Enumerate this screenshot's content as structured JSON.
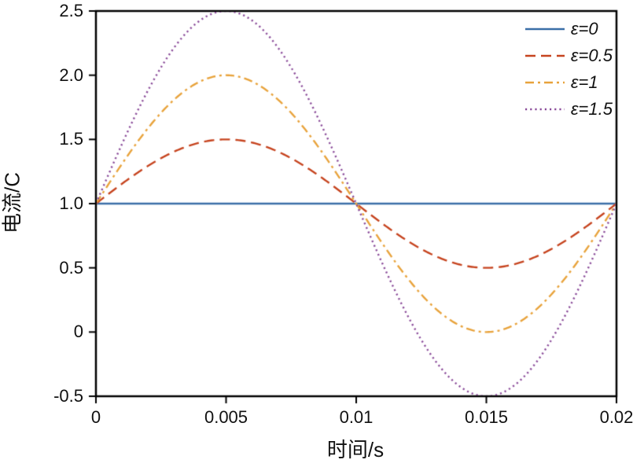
{
  "chart_data": {
    "type": "line",
    "title": "",
    "xlabel": "时间/s",
    "ylabel": "电流/C",
    "xlim": [
      0,
      0.02
    ],
    "ylim": [
      -0.5,
      2.5
    ],
    "grid": false,
    "legend_position": "upper right",
    "axis_color": "#000000",
    "model": "y = 1 + epsilon * sin(2*pi*x / 0.02)",
    "baseline": 1,
    "period": 0.02,
    "xtick_values": [
      0,
      0.005,
      0.01,
      0.015,
      0.02
    ],
    "xtick_labels": [
      "0",
      "0.005",
      "0.01",
      "0.015",
      "0.02"
    ],
    "ytick_values": [
      -0.5,
      0,
      0.5,
      1.0,
      1.5,
      2.0,
      2.5
    ],
    "ytick_labels": [
      "-0.5",
      "0",
      "0.5",
      "1.0",
      "1.5",
      "2.0",
      "2.5"
    ],
    "series": [
      {
        "name": "ε=0",
        "epsilon": 0,
        "color": "#3B6FA8",
        "style": "solid"
      },
      {
        "name": "ε=0.5",
        "epsilon": 0.5,
        "color": "#C6441F",
        "style": "dashed"
      },
      {
        "name": "ε=1",
        "epsilon": 1,
        "color": "#E8A33C",
        "style": "dashdot"
      },
      {
        "name": "ε=1.5",
        "epsilon": 1.5,
        "color": "#8C4E9B",
        "style": "dotted"
      }
    ],
    "sample_x": [
      0,
      0.0025,
      0.005,
      0.0075,
      0.01,
      0.0125,
      0.015,
      0.0175,
      0.02
    ],
    "sample_values": {
      "ε=0": [
        1,
        1,
        1,
        1,
        1,
        1,
        1,
        1,
        1
      ],
      "ε=0.5": [
        1,
        1.354,
        1.5,
        1.354,
        1,
        0.646,
        0.5,
        0.646,
        1
      ],
      "ε=1": [
        1,
        1.707,
        2.0,
        1.707,
        1,
        0.293,
        0.0,
        0.293,
        1
      ],
      "ε=1.5": [
        1,
        2.061,
        2.5,
        2.061,
        1,
        -0.061,
        -0.5,
        -0.061,
        1
      ]
    }
  }
}
